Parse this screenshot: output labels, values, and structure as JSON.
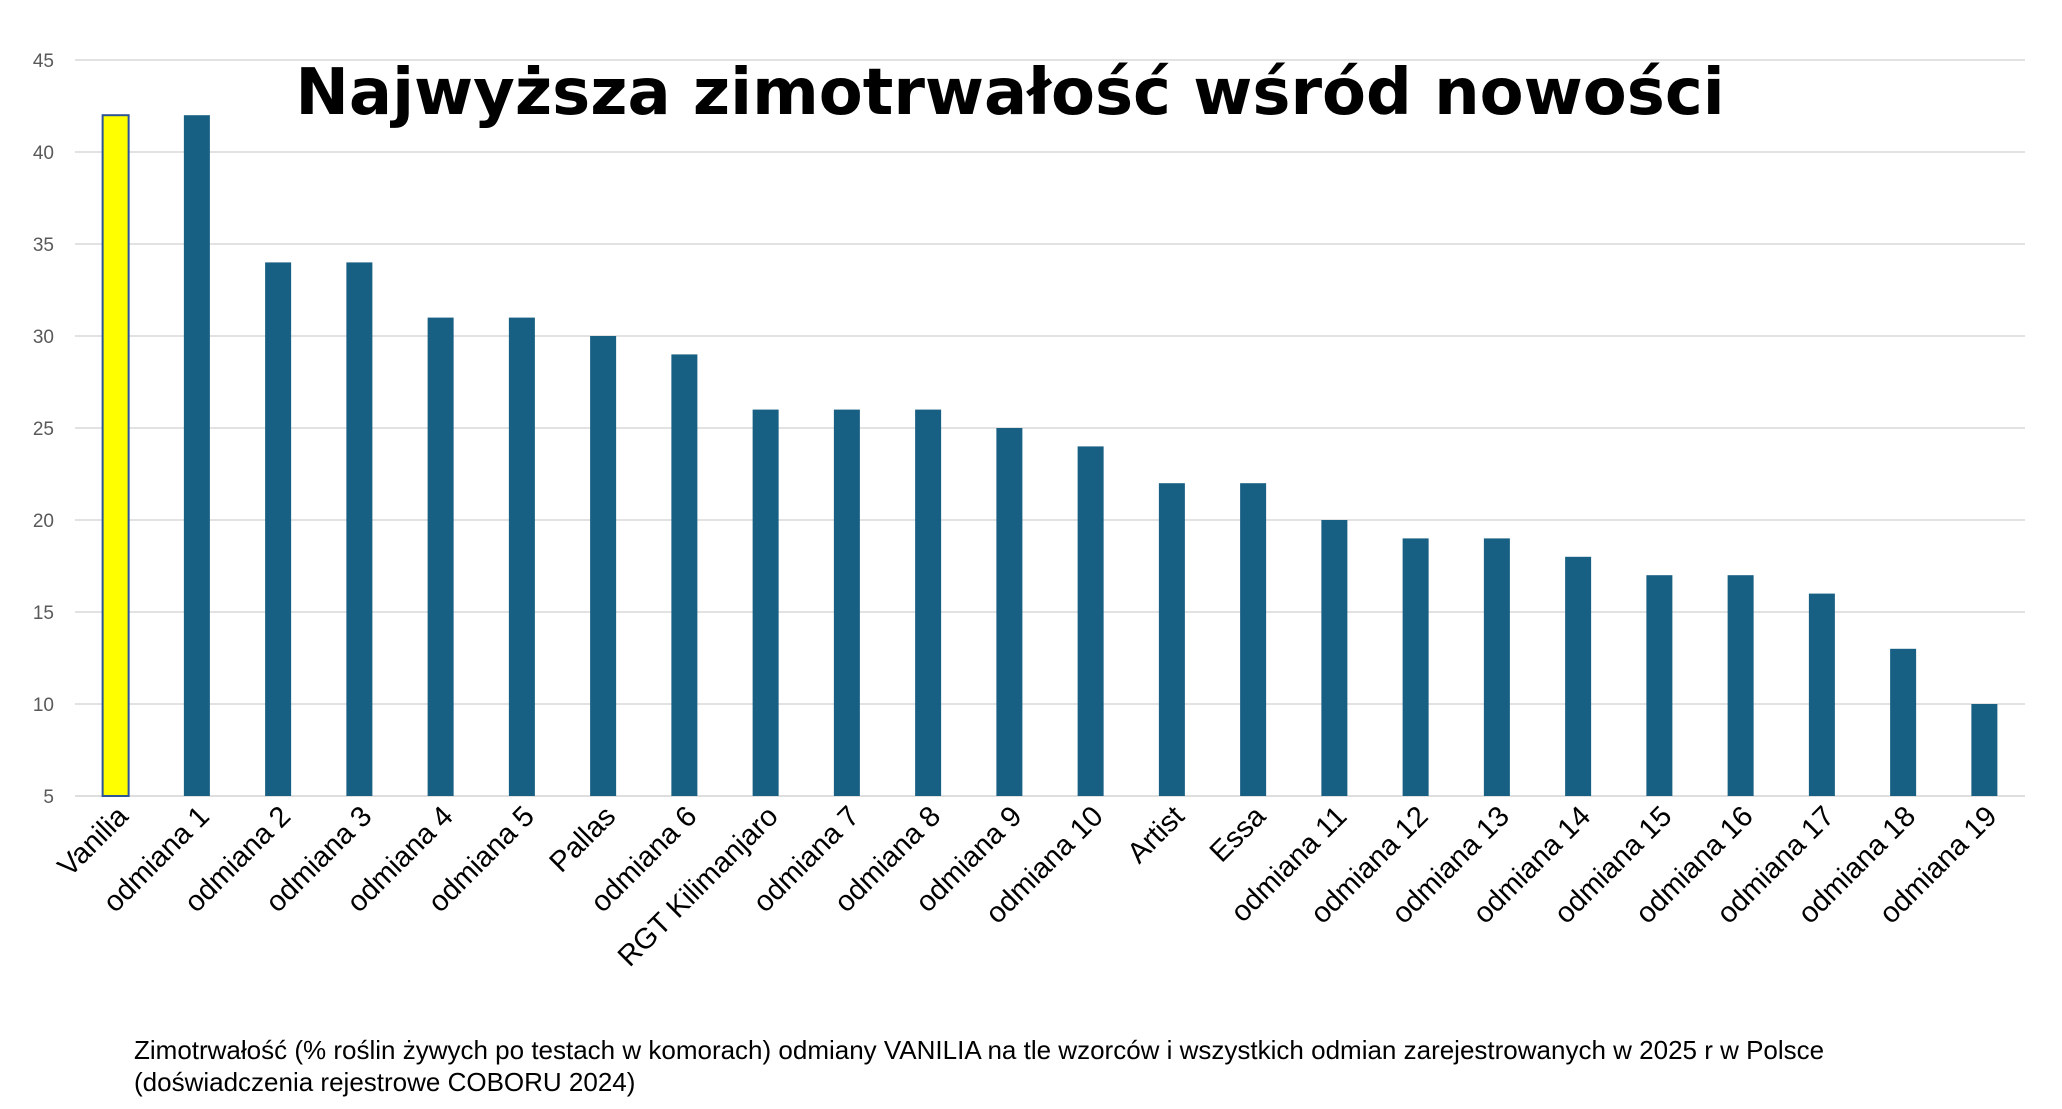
{
  "chart_data": {
    "type": "bar",
    "title": "Najwyższa zimotrwałość wśród nowości",
    "categories": [
      "Vanilia",
      "odmiana 1",
      "odmiana 2",
      "odmiana 3",
      "odmiana 4",
      "odmiana 5",
      "Pallas",
      "odmiana 6",
      "RGT Kilimanjaro",
      "odmiana 7",
      "odmiana 8",
      "odmiana 9",
      "odmiana 10",
      "Artist",
      "Essa",
      "odmiana 11",
      "odmiana 12",
      "odmiana 13",
      "odmiana 14",
      "odmiana 15",
      "odmiana 16",
      "odmiana 17",
      "odmiana 18",
      "odmiana 19"
    ],
    "values": [
      42,
      42,
      34,
      34,
      31,
      31,
      30,
      29,
      26,
      26,
      26,
      25,
      24,
      22,
      22,
      20,
      19,
      19,
      18,
      17,
      17,
      16,
      13,
      10
    ],
    "ylim": [
      5,
      45
    ],
    "yticks": [
      5,
      10,
      15,
      20,
      25,
      30,
      35,
      40,
      45
    ],
    "grid": true,
    "highlight_index": 0,
    "colors": {
      "bar": "#175F83",
      "highlight": "#FFFF00",
      "highlight_border": "#2F5597",
      "grid": "#D9D9D9"
    }
  },
  "caption": {
    "line1": "Zimotrwałość (% roślin żywych po testach w komorach) odmiany VANILIA na tle wzorców i wszystkich odmian zarejestrowanych w 2025 r w Polsce",
    "line2": "(doświadczenia rejestrowe COBORU 2024)"
  }
}
